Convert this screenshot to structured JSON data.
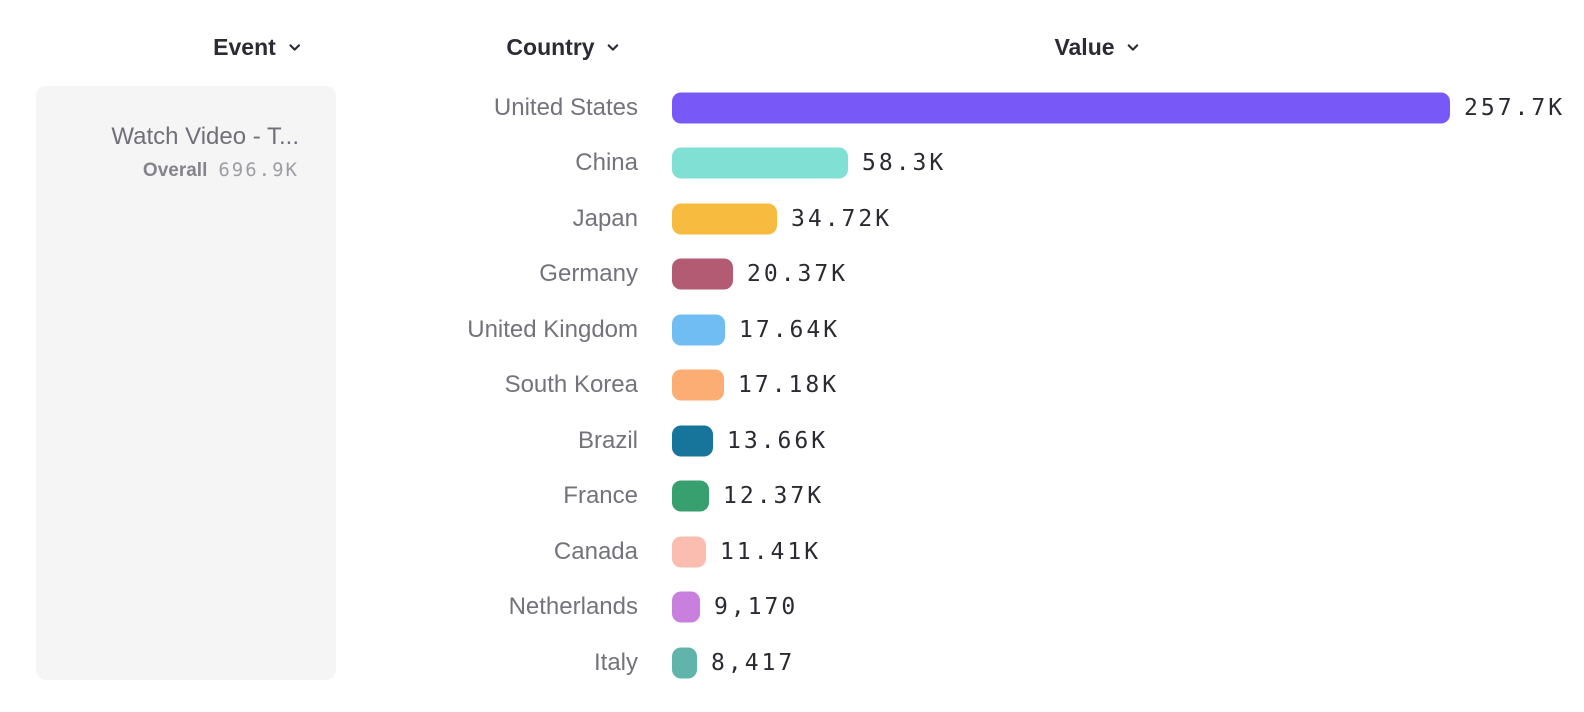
{
  "header": {
    "columns": [
      {
        "label": "Event"
      },
      {
        "label": "Country"
      },
      {
        "label": "Value"
      }
    ]
  },
  "event_panel": {
    "title": "Watch Video - T...",
    "overall_label": "Overall",
    "overall_value": "696.9K"
  },
  "chart_data": {
    "type": "bar",
    "orientation": "horizontal",
    "series_name": "Watch Video - T...",
    "overall_total": "696.9K",
    "xlabel": "Value",
    "ylabel": "Country",
    "categories": [
      "United States",
      "China",
      "Japan",
      "Germany",
      "United Kingdom",
      "South Korea",
      "Brazil",
      "France",
      "Canada",
      "Netherlands",
      "Italy"
    ],
    "values": [
      257700,
      58300,
      34720,
      20370,
      17640,
      17180,
      13660,
      12370,
      11410,
      9170,
      8417
    ],
    "value_labels": [
      "257.7K",
      "58.3K",
      "34.72K",
      "20.37K",
      "17.64K",
      "17.18K",
      "13.66K",
      "12.37K",
      "11.41K",
      "9,170",
      "8,417"
    ],
    "colors": [
      "#7859f8",
      "#7fe0d3",
      "#f7bb40",
      "#b25b72",
      "#70bdf4",
      "#fbad74",
      "#17749b",
      "#38a06e",
      "#fbbdaf",
      "#c87fde",
      "#61b4aa"
    ],
    "xlim": [
      0,
      257700
    ],
    "grid": false,
    "legend": false
  }
}
